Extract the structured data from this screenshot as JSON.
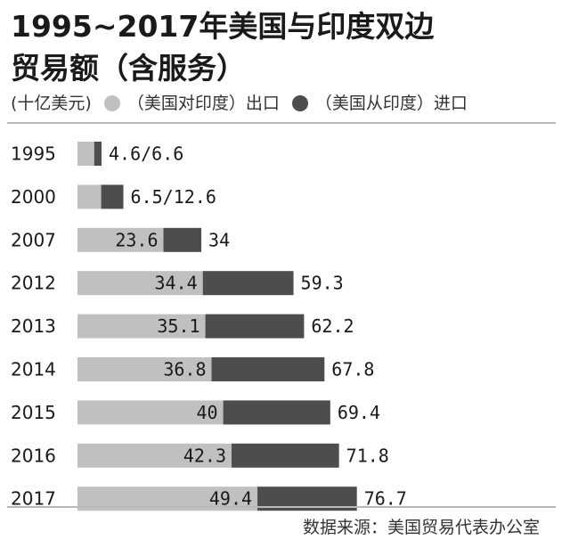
{
  "chart_data": {
    "type": "bar",
    "stacked": true,
    "orientation": "horizontal",
    "title_line1": "1995~2017年美国与印度双边",
    "title_line2": "贸易额（含服务）",
    "unit": "(十亿美元)",
    "categories": [
      "1995",
      "2000",
      "2007",
      "2012",
      "2013",
      "2014",
      "2015",
      "2016",
      "2017"
    ],
    "series": [
      {
        "name": "（美国对印度）出口",
        "color": "#c0c0c0",
        "values": [
          4.6,
          6.5,
          23.6,
          34.4,
          35.1,
          36.8,
          40,
          42.3,
          49.4
        ]
      },
      {
        "name": "（美国从印度）进口",
        "color": "#4d4d4d",
        "values": [
          6.6,
          12.6,
          34,
          59.3,
          62.2,
          67.8,
          69.4,
          71.8,
          76.7
        ]
      }
    ],
    "labels": [
      "4.6/6.6",
      "6.5/12.6",
      null,
      null,
      null,
      null,
      null,
      null,
      null
    ],
    "source": "数据来源：美国贸易代表办公室"
  }
}
